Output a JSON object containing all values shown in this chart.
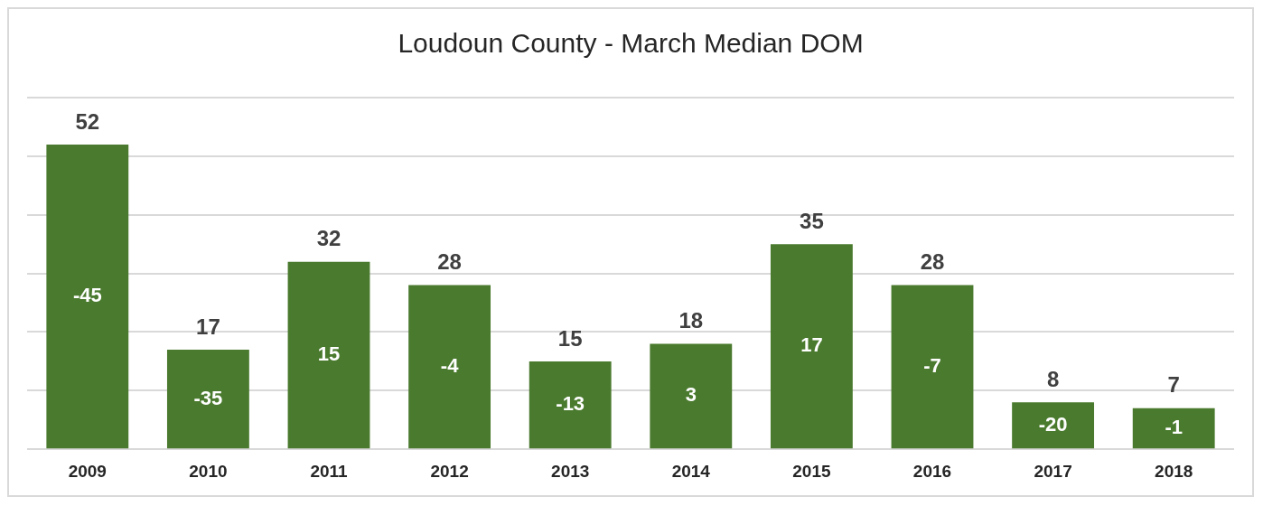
{
  "chart_data": {
    "type": "bar",
    "title": "Loudoun County - March Median DOM",
    "categories": [
      "2009",
      "2010",
      "2011",
      "2012",
      "2013",
      "2014",
      "2015",
      "2016",
      "2017",
      "2018"
    ],
    "values": [
      52,
      17,
      32,
      28,
      15,
      18,
      35,
      28,
      8,
      7
    ],
    "color": "#4a7a2e",
    "ylim": [
      0,
      60
    ],
    "yticks": [
      0,
      10,
      20,
      30,
      40,
      50,
      60
    ],
    "grid": "y",
    "tick_labels": "x",
    "data_labels": true,
    "legend": false,
    "annotations": [
      "-45",
      "-35",
      "15",
      "-4",
      "-13",
      "3",
      "17",
      "-7",
      "-20",
      "-1"
    ]
  }
}
